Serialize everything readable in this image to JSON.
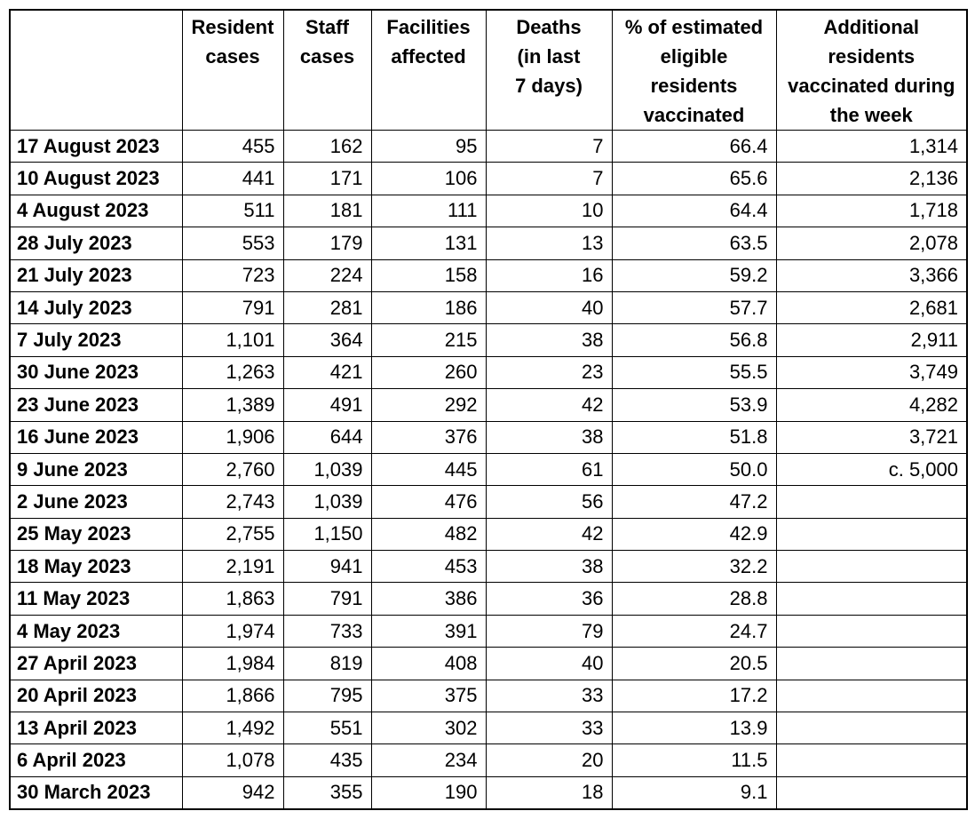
{
  "table": {
    "columns": [
      {
        "key": "date",
        "label": ""
      },
      {
        "key": "resident_cases",
        "label": "Resident\ncases"
      },
      {
        "key": "staff_cases",
        "label": "Staff\ncases"
      },
      {
        "key": "facilities_affected",
        "label": "Facilities\naffected"
      },
      {
        "key": "deaths",
        "label": "Deaths\n(in last\n7 days)"
      },
      {
        "key": "pct_vaccinated",
        "label": "% of estimated\neligible\nresidents\nvaccinated"
      },
      {
        "key": "additional_vaccinated",
        "label": "Additional\nresidents\nvaccinated during\nthe week"
      }
    ],
    "rows": [
      {
        "date": "17 August 2023",
        "resident_cases": "455",
        "staff_cases": "162",
        "facilities_affected": "95",
        "deaths": "7",
        "pct_vaccinated": "66.4",
        "additional_vaccinated": "1,314"
      },
      {
        "date": "10 August 2023",
        "resident_cases": "441",
        "staff_cases": "171",
        "facilities_affected": "106",
        "deaths": "7",
        "pct_vaccinated": "65.6",
        "additional_vaccinated": "2,136"
      },
      {
        "date": "4 August 2023",
        "resident_cases": "511",
        "staff_cases": "181",
        "facilities_affected": "111",
        "deaths": "10",
        "pct_vaccinated": "64.4",
        "additional_vaccinated": "1,718"
      },
      {
        "date": "28 July 2023",
        "resident_cases": "553",
        "staff_cases": "179",
        "facilities_affected": "131",
        "deaths": "13",
        "pct_vaccinated": "63.5",
        "additional_vaccinated": "2,078"
      },
      {
        "date": "21 July 2023",
        "resident_cases": "723",
        "staff_cases": "224",
        "facilities_affected": "158",
        "deaths": "16",
        "pct_vaccinated": "59.2",
        "additional_vaccinated": "3,366"
      },
      {
        "date": "14 July 2023",
        "resident_cases": "791",
        "staff_cases": "281",
        "facilities_affected": "186",
        "deaths": "40",
        "pct_vaccinated": "57.7",
        "additional_vaccinated": "2,681"
      },
      {
        "date": "7 July 2023",
        "resident_cases": "1,101",
        "staff_cases": "364",
        "facilities_affected": "215",
        "deaths": "38",
        "pct_vaccinated": "56.8",
        "additional_vaccinated": "2,911"
      },
      {
        "date": "30 June 2023",
        "resident_cases": "1,263",
        "staff_cases": "421",
        "facilities_affected": "260",
        "deaths": "23",
        "pct_vaccinated": "55.5",
        "additional_vaccinated": "3,749"
      },
      {
        "date": "23 June 2023",
        "resident_cases": "1,389",
        "staff_cases": "491",
        "facilities_affected": "292",
        "deaths": "42",
        "pct_vaccinated": "53.9",
        "additional_vaccinated": "4,282"
      },
      {
        "date": "16 June 2023",
        "resident_cases": "1,906",
        "staff_cases": "644",
        "facilities_affected": "376",
        "deaths": "38",
        "pct_vaccinated": "51.8",
        "additional_vaccinated": "3,721"
      },
      {
        "date": "9 June 2023",
        "resident_cases": "2,760",
        "staff_cases": "1,039",
        "facilities_affected": "445",
        "deaths": "61",
        "pct_vaccinated": "50.0",
        "additional_vaccinated": "c. 5,000"
      },
      {
        "date": "2 June 2023",
        "resident_cases": "2,743",
        "staff_cases": "1,039",
        "facilities_affected": "476",
        "deaths": "56",
        "pct_vaccinated": "47.2",
        "additional_vaccinated": ""
      },
      {
        "date": "25 May 2023",
        "resident_cases": "2,755",
        "staff_cases": "1,150",
        "facilities_affected": "482",
        "deaths": "42",
        "pct_vaccinated": "42.9",
        "additional_vaccinated": ""
      },
      {
        "date": "18 May 2023",
        "resident_cases": "2,191",
        "staff_cases": "941",
        "facilities_affected": "453",
        "deaths": "38",
        "pct_vaccinated": "32.2",
        "additional_vaccinated": ""
      },
      {
        "date": "11 May 2023",
        "resident_cases": "1,863",
        "staff_cases": "791",
        "facilities_affected": "386",
        "deaths": "36",
        "pct_vaccinated": "28.8",
        "additional_vaccinated": ""
      },
      {
        "date": "4 May 2023",
        "resident_cases": "1,974",
        "staff_cases": "733",
        "facilities_affected": "391",
        "deaths": "79",
        "pct_vaccinated": "24.7",
        "additional_vaccinated": ""
      },
      {
        "date": "27 April 2023",
        "resident_cases": "1,984",
        "staff_cases": "819",
        "facilities_affected": "408",
        "deaths": "40",
        "pct_vaccinated": "20.5",
        "additional_vaccinated": ""
      },
      {
        "date": "20 April 2023",
        "resident_cases": "1,866",
        "staff_cases": "795",
        "facilities_affected": "375",
        "deaths": "33",
        "pct_vaccinated": "17.2",
        "additional_vaccinated": ""
      },
      {
        "date": "13 April 2023",
        "resident_cases": "1,492",
        "staff_cases": "551",
        "facilities_affected": "302",
        "deaths": "33",
        "pct_vaccinated": "13.9",
        "additional_vaccinated": ""
      },
      {
        "date": "6 April 2023",
        "resident_cases": "1,078",
        "staff_cases": "435",
        "facilities_affected": "234",
        "deaths": "20",
        "pct_vaccinated": "11.5",
        "additional_vaccinated": ""
      },
      {
        "date": "30 March 2023",
        "resident_cases": "942",
        "staff_cases": "355",
        "facilities_affected": "190",
        "deaths": "18",
        "pct_vaccinated": "9.1",
        "additional_vaccinated": ""
      }
    ],
    "colors": {
      "border": "#000000",
      "text": "#000000",
      "background": "#ffffff"
    }
  }
}
